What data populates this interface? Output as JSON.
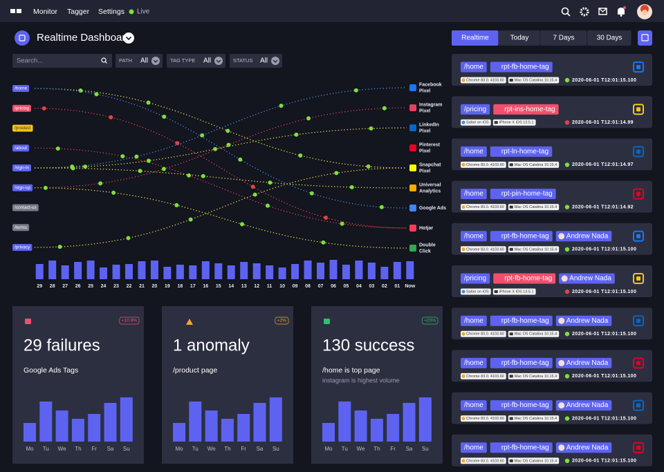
{
  "nav": {
    "items": [
      "Monitor",
      "Tagger",
      "Settings"
    ],
    "live": "Live"
  },
  "header": {
    "title": "Realtime Dashboard"
  },
  "tabs": {
    "items": [
      "Realtime",
      "Today",
      "7 Days",
      "30 Days"
    ],
    "active": 0
  },
  "filters": {
    "search": "Search...",
    "items": [
      {
        "label": "PATH",
        "value": "All"
      },
      {
        "label": "TAG TYPE",
        "value": "All"
      },
      {
        "label": "STATUS",
        "value": "All"
      }
    ]
  },
  "flow": {
    "paths": [
      {
        "label": "/home",
        "color": "#5d63f0"
      },
      {
        "label": "/pricing",
        "color": "#f0506e"
      },
      {
        "label": "/product",
        "color": "#f5c518"
      },
      {
        "label": "/about",
        "color": "#5d63f0"
      },
      {
        "label": "/sign-in",
        "color": "#5d63f0"
      },
      {
        "label": "/sign-up",
        "color": "#5d63f0"
      },
      {
        "label": "/contact-us",
        "color": "#777a88"
      },
      {
        "label": "/terms",
        "color": "#777a88"
      },
      {
        "label": "/privacy",
        "color": "#5d63f0"
      }
    ],
    "targets": [
      {
        "lines": [
          "Facebook",
          "Pixel"
        ],
        "color": "#1877f2"
      },
      {
        "lines": [
          "Instagram",
          "Pixel"
        ],
        "color": "#e4405f"
      },
      {
        "lines": [
          "LinkedIn",
          "Pixel"
        ],
        "color": "#0a66c2"
      },
      {
        "lines": [
          "Pinterest",
          "Pixel"
        ],
        "color": "#e60023"
      },
      {
        "lines": [
          "Snapchat",
          "Pixel"
        ],
        "color": "#fffc00"
      },
      {
        "lines": [
          "Universal",
          "Analytics"
        ],
        "color": "#f9ab00"
      },
      {
        "lines": [
          "Google Ads"
        ],
        "color": "#4285f4"
      },
      {
        "lines": [
          "Hotjar"
        ],
        "color": "#fd3a5c"
      },
      {
        "lines": [
          "Double",
          "Click"
        ],
        "color": "#34a853"
      }
    ],
    "links": [
      {
        "from": 0,
        "to": 4,
        "color": "#e8e04a",
        "dot": "#7ee03a"
      },
      {
        "from": 0,
        "to": 6,
        "color": "#3f8fe0",
        "dot": "#7ee03a"
      },
      {
        "from": 1,
        "to": 7,
        "color": "#e04444",
        "dot": "#e04444"
      },
      {
        "from": 3,
        "to": 7,
        "color": "#e04444",
        "dot": "#7ee03a"
      },
      {
        "from": 4,
        "to": 0,
        "color": "#3f8fe0",
        "dot": "#7ee03a"
      },
      {
        "from": 4,
        "to": 2,
        "color": "#e8e04a",
        "dot": "#7ee03a"
      },
      {
        "from": 5,
        "to": 1,
        "color": "#e04444",
        "dot": "#7ee03a"
      },
      {
        "from": 5,
        "to": 8,
        "color": "#e8e04a",
        "dot": "#7ee03a"
      },
      {
        "from": 8,
        "to": 4,
        "color": "#e8e04a",
        "dot": "#7ee03a"
      },
      {
        "from": 4,
        "to": 5,
        "color": "#e8e04a",
        "dot": "#7ee03a"
      }
    ]
  },
  "activity": {
    "type": "bar",
    "color": "#5d63f0",
    "categories": [
      "29",
      "28",
      "27",
      "26",
      "25",
      "24",
      "23",
      "22",
      "21",
      "20",
      "19",
      "18",
      "17",
      "16",
      "15",
      "14",
      "13",
      "12",
      "11",
      "10",
      "09",
      "08",
      "07",
      "06",
      "05",
      "04",
      "03",
      "02",
      "01",
      "Now"
    ],
    "values": [
      22,
      27,
      20,
      25,
      27,
      17,
      21,
      22,
      26,
      27,
      18,
      21,
      20,
      26,
      23,
      20,
      25,
      23,
      20,
      17,
      22,
      27,
      24,
      28,
      21,
      27,
      24,
      18,
      25,
      26
    ]
  },
  "cards": [
    {
      "headline": "29 failures",
      "badge": "+10.9%",
      "badge_color": "#f0506e",
      "icon_color": "#f0506e",
      "title": "Google Ads Tags",
      "days": [
        "Mo",
        "Tu",
        "We",
        "Th",
        "Fr",
        "Sa",
        "Su"
      ],
      "values": [
        27,
        58,
        45,
        33,
        40,
        56,
        64
      ],
      "color": "#5d63f0"
    },
    {
      "headline": "1 anomaly",
      "badge": "+2%",
      "badge_color": "#f5a623",
      "icon_color": "#f5a623",
      "title": "/product page",
      "days": [
        "Mo",
        "Tu",
        "We",
        "Th",
        "Fr",
        "Sa",
        "Su"
      ],
      "values": [
        27,
        58,
        45,
        33,
        40,
        56,
        64
      ],
      "color": "#5d63f0"
    },
    {
      "headline": "130 success",
      "badge": "+20%",
      "badge_color": "#2fbf71",
      "icon_color": "#2fbf71",
      "title": "/home is top page",
      "subtitle": "instagram is highest volume",
      "days": [
        "Mo",
        "Tu",
        "We",
        "Th",
        "Fr",
        "Sa",
        "Su"
      ],
      "values": [
        27,
        58,
        45,
        33,
        40,
        56,
        64
      ],
      "color": "#5d63f0"
    }
  ],
  "events": [
    {
      "path": "/home",
      "tag": "rpt-fb-home-tag",
      "tag_color": "#5d63f0",
      "browser": "Chrome 83.0. 4103.60",
      "os": "Mac OS Catalina 10.15.4",
      "status_color": "#7ee03a",
      "time": "2020-06-01 T12:01:15.100",
      "icon_color": "#1877f2"
    },
    {
      "path": "/pricing",
      "tag": "rpt-ins-home-tag",
      "tag_color": "#f0506e",
      "browser": "Safari on iOS",
      "os": "iPhone X iOS 13.5.1",
      "status_color": "#e04444",
      "time": "2020-06-01 T12:01:14.99",
      "icon_color": "#f5c518"
    },
    {
      "path": "/home",
      "tag": "rpt-ln-home-tag",
      "tag_color": "#5d63f0",
      "browser": "Chrome 83.0. 4103.60",
      "os": "Mac OS Catalina 10.15.4",
      "status_color": "#7ee03a",
      "time": "2020-06-01 T12:01:14.97",
      "icon_color": "#0a66c2"
    },
    {
      "path": "/home",
      "tag": "rpt-pin-home-tag",
      "tag_color": "#5d63f0",
      "browser": "Chrome 83.0. 4103.60",
      "os": "Mac OS Catalina 10.15.4",
      "status_color": "#7ee03a",
      "time": "2020-06-01 T12:01:14.92",
      "icon_color": "#e60023"
    },
    {
      "path": "/home",
      "tag": "rpt-fb-home-tag",
      "tag_color": "#5d63f0",
      "user": "Andrew Nada",
      "browser": "Chrome 83.0. 4103.60",
      "os": "Mac OS Catalina 10.15.4",
      "status_color": "#7ee03a",
      "time": "2020-06-01 T12:01:15.100",
      "icon_color": "#1877f2"
    },
    {
      "path": "/pricing",
      "tag": "rpt-fb-home-tag",
      "tag_color": "#f0506e",
      "user": "Andrew Nada",
      "browser": "Safari on iOS",
      "os": "iPhone X iOS 13.5.1",
      "status_color": "#e04444",
      "time": "2020-06-01 T12:01:15.100",
      "icon_color": "#f5c518"
    },
    {
      "path": "/home",
      "tag": "rpt-fb-home-tag",
      "tag_color": "#5d63f0",
      "user": "Andrew Nada",
      "browser": "Chrome 83.0. 4103.60",
      "os": "Mac OS Catalina 10.15.4",
      "status_color": "#7ee03a",
      "time": "2020-06-01 T12:01:15.100",
      "icon_color": "#0a66c2"
    },
    {
      "path": "/home",
      "tag": "rpt-fb-home-tag",
      "tag_color": "#5d63f0",
      "user": "Andrew Nada",
      "browser": "Chrome 83.0. 4103.60",
      "os": "Mac OS Catalina 10.15.4",
      "status_color": "#7ee03a",
      "time": "2020-06-01 T12:01:15.100",
      "icon_color": "#e60023"
    },
    {
      "path": "/home",
      "tag": "rpt-fb-home-tag",
      "tag_color": "#5d63f0",
      "user": "Andrew Nada",
      "browser": "Chrome 83.0. 4103.60",
      "os": "Mac OS Catalina 10.15.4",
      "status_color": "#7ee03a",
      "time": "2020-06-01 T12:01:15.100",
      "icon_color": "#0a66c2"
    },
    {
      "path": "/home",
      "tag": "rpt-fb-home-tag",
      "tag_color": "#5d63f0",
      "user": "Andrew Nada",
      "browser": "Chrome 83.0. 4103.60",
      "os": "Mac OS Catalina 10.15.4",
      "status_color": "#7ee03a",
      "time": "2020-06-01 T12:01:15.100",
      "icon_color": "#e60023"
    }
  ]
}
